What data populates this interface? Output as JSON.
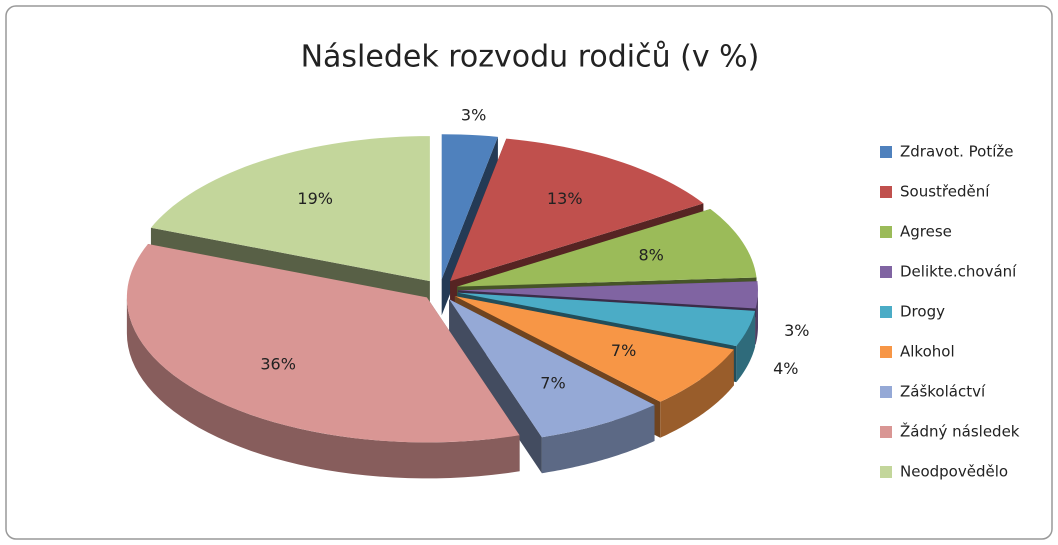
{
  "chart_data": {
    "type": "pie",
    "title": "Následek rozvodu rodičů (v %)",
    "categories": [
      "Zdravot. Potíže",
      "Soustředění",
      "Agrese",
      "Delikte.chování",
      "Drogy",
      "Alkohol",
      "Záškoláctví",
      "Žádný následek",
      "Neodpovědělo"
    ],
    "values": [
      3,
      13,
      8,
      3,
      4,
      7,
      7,
      36,
      19
    ],
    "value_labels": [
      "3%",
      "13%",
      "8%",
      "3%",
      "4%",
      "7%",
      "7%",
      "36%",
      "19%"
    ],
    "colors": [
      "#4f81bd",
      "#c0504d",
      "#9bbb59",
      "#8064a2",
      "#4bacc6",
      "#f79646",
      "#95a9d6",
      "#d99694",
      "#c3d69b"
    ],
    "legend": "right"
  }
}
